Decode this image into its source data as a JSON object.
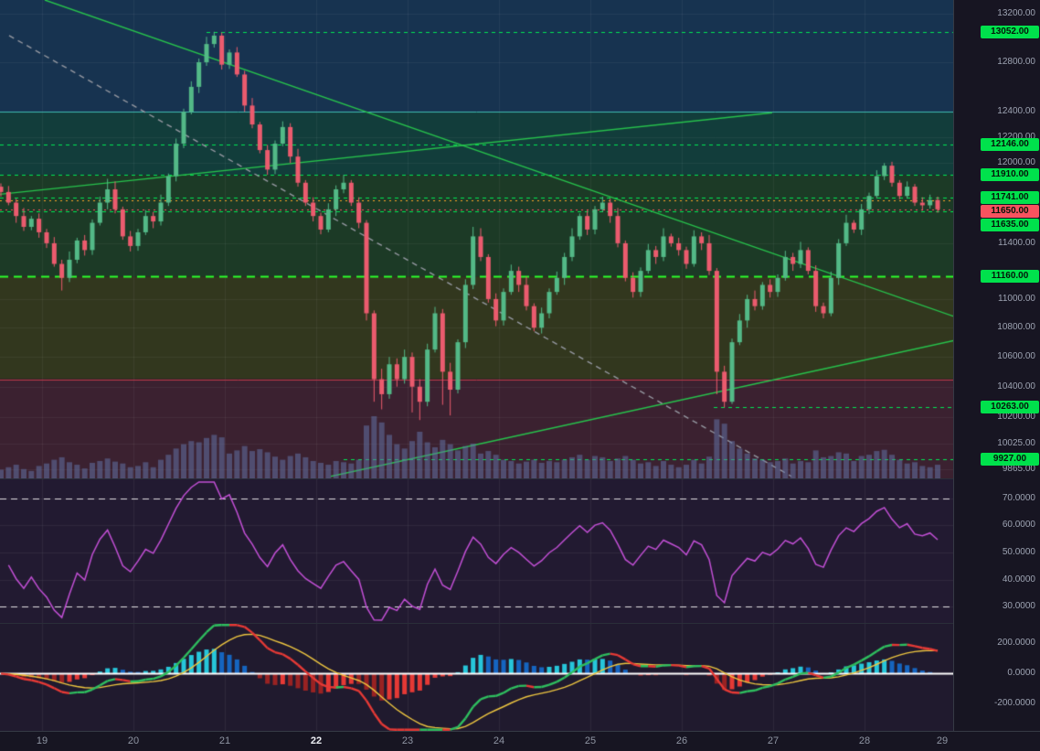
{
  "colors": {
    "bg": "#1A1626",
    "axis_text": "#9DA3B2",
    "axis_text_bold": "#EDEFF4",
    "grid": "rgba(255,255,255,0.055)",
    "up": "#53B987",
    "down": "#EB5B6E",
    "volume": "rgba(99,114,165,0.55)",
    "trend_green": "#27C24C",
    "gray_dash": "#9598A1",
    "level_green": "#00E653",
    "level_green_bright": "#2BFF2B",
    "teal": "#3FB8AF",
    "red_line": "#C0394B",
    "orange": "#FFA726",
    "last_price": "#F7525F",
    "badge_green": "#00E14C",
    "badge_red": "#F7525F",
    "rsi_line": "#C14ED4",
    "rsi_band": "rgba(255,255,255,0.85)",
    "macd_up": "#2EBD5E",
    "macd_down": "#E53935",
    "signal_line": "#EDC53F",
    "hist_pos": "#26C6DA",
    "hist_pos_dim": "#1565C0",
    "hist_neg": "#E53935",
    "hist_neg_dim": "#992222",
    "zero_line": "#FFFFFF"
  },
  "chart_data": [
    {
      "type": "candlestick",
      "x_unit": "day of month",
      "x_range": [
        18.54,
        28.97
      ],
      "y_scale": "log",
      "y_range_log": [
        9807,
        13320
      ],
      "start_day": 18.55,
      "candles_per_day": 12,
      "volume_max": 100,
      "y_ticks": [
        {
          "v": 13200,
          "label": "13200.00"
        },
        {
          "v": 12800,
          "label": "12800.00"
        },
        {
          "v": 12400,
          "label": "12400.00"
        },
        {
          "v": 12200,
          "label": "12200.00"
        },
        {
          "v": 12000,
          "label": "12000.00"
        },
        {
          "v": 11400,
          "label": "11400.00"
        },
        {
          "v": 11000,
          "label": "11000.00"
        },
        {
          "v": 10800,
          "label": "10800.00"
        },
        {
          "v": 10600,
          "label": "10600.00"
        },
        {
          "v": 10400,
          "label": "10400.00"
        },
        {
          "v": 10200,
          "label": "10200.00"
        },
        {
          "v": 10025,
          "label": "10025.00"
        },
        {
          "v": 9865,
          "label": "9865.00"
        }
      ],
      "x_ticks": [
        {
          "v": 19,
          "label": "19"
        },
        {
          "v": 20,
          "label": "20"
        },
        {
          "v": 21,
          "label": "21"
        },
        {
          "v": 22,
          "label": "22",
          "bold": true
        },
        {
          "v": 23,
          "label": "23"
        },
        {
          "v": 24,
          "label": "24"
        },
        {
          "v": 25,
          "label": "25"
        },
        {
          "v": 26,
          "label": "26"
        },
        {
          "v": 27,
          "label": "27"
        },
        {
          "v": 28,
          "label": "28"
        },
        {
          "v": 29,
          "label": "29"
        }
      ],
      "levels": [
        {
          "value": 13052,
          "label": "13052.00",
          "style": "dashed",
          "badge": "green",
          "from_day": 20.8
        },
        {
          "value": 12400,
          "label": null,
          "style": "solid-teal",
          "badge": false
        },
        {
          "value": 12146,
          "label": "12146.00",
          "style": "dashed",
          "badge": "green"
        },
        {
          "value": 11910,
          "label": "11910.00",
          "style": "dashed",
          "badge": "green"
        },
        {
          "value": 11741,
          "label": "11741.00",
          "style": "dashed",
          "badge": "green"
        },
        {
          "value": 11720,
          "label": null,
          "style": "dotted-orange",
          "badge": false
        },
        {
          "value": 11650,
          "label": "11650.00",
          "style": "dotted-red",
          "badge": "red",
          "last_price": true
        },
        {
          "value": 11635,
          "label": "11635.00",
          "style": "dashed",
          "badge": "green"
        },
        {
          "value": 11160,
          "label": "11160.00",
          "style": "dashed-thick",
          "badge": "green"
        },
        {
          "value": 10450,
          "label": null,
          "style": "solid-red",
          "badge": false
        },
        {
          "value": 10263,
          "label": "10263.00",
          "style": "dashed",
          "badge": "green",
          "from_day": 26.35
        },
        {
          "value": 9927,
          "label": "9927.00",
          "style": "dashed",
          "badge": "green",
          "from_day": 22.3
        }
      ],
      "trendlines": [
        {
          "x1": 19.03,
          "y1": 13320,
          "x2": 28.97,
          "y2": 10880,
          "color": "green",
          "style": "solid"
        },
        {
          "x1": 22.16,
          "y1": 9820,
          "x2": 28.97,
          "y2": 10710,
          "color": "green",
          "style": "solid"
        },
        {
          "x1": 18.54,
          "y1": 11763,
          "x2": 26.99,
          "y2": 12393,
          "color": "green",
          "style": "solid"
        },
        {
          "x1": 18.64,
          "y1": 13020,
          "x2": 27.2,
          "y2": 9820,
          "color": "gray",
          "style": "dashed"
        }
      ],
      "zones": [
        {
          "from": 12400,
          "to": 13320,
          "color": "#173350"
        },
        {
          "from": 11910,
          "to": 12400,
          "color": "#123D3B"
        },
        {
          "from": 11160,
          "to": 11910,
          "color": "#1C3A26"
        },
        {
          "from": 10450,
          "to": 11160,
          "color": "#32371E"
        },
        {
          "from": 9807,
          "to": 10450,
          "color": "#3B2130"
        }
      ],
      "candles": [
        [
          11820,
          11845,
          11745,
          11780,
          14
        ],
        [
          11780,
          11825,
          11680,
          11700,
          18
        ],
        [
          11700,
          11730,
          11550,
          11600,
          22
        ],
        [
          11600,
          11660,
          11490,
          11520,
          15
        ],
        [
          11520,
          11600,
          11495,
          11580,
          12
        ],
        [
          11580,
          11620,
          11440,
          11480,
          20
        ],
        [
          11480,
          11505,
          11365,
          11400,
          24
        ],
        [
          11400,
          11445,
          11230,
          11250,
          30
        ],
        [
          11250,
          11280,
          11060,
          11150,
          34
        ],
        [
          11150,
          11340,
          11120,
          11280,
          26
        ],
        [
          11280,
          11440,
          11255,
          11420,
          22
        ],
        [
          11420,
          11460,
          11310,
          11350,
          16
        ],
        [
          11350,
          11575,
          11315,
          11550,
          25
        ],
        [
          11550,
          11745,
          11530,
          11700,
          28
        ],
        [
          11700,
          11880,
          11650,
          11800,
          32
        ],
        [
          11800,
          11860,
          11620,
          11650,
          27
        ],
        [
          11650,
          11670,
          11425,
          11450,
          24
        ],
        [
          11450,
          11490,
          11340,
          11380,
          18
        ],
        [
          11380,
          11505,
          11345,
          11480,
          20
        ],
        [
          11480,
          11645,
          11460,
          11600,
          26
        ],
        [
          11600,
          11630,
          11510,
          11560,
          18
        ],
        [
          11560,
          11760,
          11530,
          11700,
          30
        ],
        [
          11700,
          11920,
          11675,
          11900,
          38
        ],
        [
          11900,
          12190,
          11860,
          12150,
          48
        ],
        [
          12150,
          12425,
          12115,
          12400,
          55
        ],
        [
          12400,
          12645,
          12380,
          12600,
          60
        ],
        [
          12600,
          12830,
          12550,
          12800,
          58
        ],
        [
          12800,
          13010,
          12770,
          12950,
          65
        ],
        [
          12950,
          13052,
          12920,
          13020,
          70
        ],
        [
          13020,
          13045,
          12740,
          12780,
          66
        ],
        [
          12780,
          12905,
          12745,
          12880,
          40
        ],
        [
          12880,
          12925,
          12680,
          12700,
          45
        ],
        [
          12700,
          12730,
          12400,
          12450,
          52
        ],
        [
          12450,
          12510,
          12270,
          12300,
          44
        ],
        [
          12300,
          12320,
          12075,
          12100,
          47
        ],
        [
          12100,
          12140,
          11910,
          11950,
          42
        ],
        [
          11950,
          12175,
          11915,
          12150,
          35
        ],
        [
          12150,
          12325,
          12130,
          12280,
          30
        ],
        [
          12280,
          12310,
          12000,
          12050,
          36
        ],
        [
          12050,
          12110,
          11820,
          11850,
          40
        ],
        [
          11850,
          11870,
          11675,
          11700,
          34
        ],
        [
          11700,
          11740,
          11560,
          11600,
          28
        ],
        [
          11600,
          11625,
          11465,
          11500,
          25
        ],
        [
          11500,
          11695,
          11480,
          11650,
          22
        ],
        [
          11650,
          11830,
          11600,
          11800,
          28
        ],
        [
          11800,
          11910,
          11770,
          11850,
          26
        ],
        [
          11850,
          11870,
          11675,
          11700,
          24
        ],
        [
          11700,
          11740,
          11510,
          11550,
          30
        ],
        [
          11550,
          11570,
          10850,
          10900,
          85
        ],
        [
          10900,
          10920,
          10300,
          10450,
          100
        ],
        [
          10450,
          10520,
          10250,
          10350,
          90
        ],
        [
          10350,
          10600,
          10320,
          10550,
          70
        ],
        [
          10550,
          10590,
          10400,
          10450,
          55
        ],
        [
          10450,
          10650,
          10420,
          10600,
          48
        ],
        [
          10600,
          10630,
          10230,
          10400,
          60
        ],
        [
          10400,
          10450,
          10180,
          10300,
          75
        ],
        [
          10300,
          10690,
          10270,
          10650,
          58
        ],
        [
          10650,
          10945,
          10630,
          10900,
          50
        ],
        [
          10900,
          10930,
          10280,
          10500,
          62
        ],
        [
          10500,
          10560,
          10210,
          10380,
          55
        ],
        [
          10380,
          10720,
          10355,
          10700,
          45
        ],
        [
          10700,
          11140,
          10660,
          11100,
          52
        ],
        [
          11100,
          11520,
          11070,
          11450,
          56
        ],
        [
          11450,
          11510,
          11270,
          11300,
          40
        ],
        [
          11300,
          11320,
          10975,
          11000,
          44
        ],
        [
          11000,
          11040,
          10810,
          10850,
          38
        ],
        [
          10850,
          11075,
          10815,
          11050,
          30
        ],
        [
          11050,
          11245,
          11030,
          11200,
          28
        ],
        [
          11200,
          11230,
          11050,
          11100,
          24
        ],
        [
          11100,
          11160,
          10920,
          10950,
          27
        ],
        [
          10950,
          10970,
          10775,
          10800,
          30
        ],
        [
          10800,
          10940,
          10760,
          10900,
          25
        ],
        [
          10900,
          11075,
          10865,
          11050,
          28
        ],
        [
          11050,
          11195,
          11030,
          11150,
          26
        ],
        [
          11150,
          11330,
          11100,
          11300,
          30
        ],
        [
          11300,
          11510,
          11270,
          11450,
          34
        ],
        [
          11450,
          11620,
          11425,
          11600,
          38
        ],
        [
          11600,
          11640,
          11460,
          11500,
          30
        ],
        [
          11500,
          11675,
          11465,
          11650,
          36
        ],
        [
          11650,
          11745,
          11630,
          11700,
          34
        ],
        [
          11700,
          11730,
          11550,
          11600,
          28
        ],
        [
          11600,
          11660,
          11370,
          11400,
          32
        ],
        [
          11400,
          11420,
          11125,
          11150,
          36
        ],
        [
          11150,
          11190,
          11010,
          11050,
          30
        ],
        [
          11050,
          11225,
          11015,
          11200,
          24
        ],
        [
          11200,
          11395,
          11180,
          11350,
          26
        ],
        [
          11350,
          11380,
          11250,
          11300,
          20
        ],
        [
          11300,
          11510,
          11270,
          11450,
          28
        ],
        [
          11450,
          11470,
          11375,
          11400,
          22
        ],
        [
          11400,
          11440,
          11310,
          11350,
          18
        ],
        [
          11350,
          11375,
          11215,
          11250,
          22
        ],
        [
          11250,
          11495,
          11230,
          11450,
          30
        ],
        [
          11450,
          11480,
          11350,
          11400,
          24
        ],
        [
          11400,
          11460,
          11170,
          11200,
          35
        ],
        [
          11200,
          11220,
          10350,
          10500,
          95
        ],
        [
          10500,
          10540,
          10263,
          10300,
          88
        ],
        [
          10300,
          10725,
          10285,
          10700,
          60
        ],
        [
          10700,
          10895,
          10680,
          10850,
          48
        ],
        [
          10850,
          11030,
          10800,
          11000,
          40
        ],
        [
          11000,
          11060,
          10920,
          10950,
          32
        ],
        [
          10950,
          11120,
          10925,
          11100,
          30
        ],
        [
          11100,
          11140,
          11010,
          11050,
          26
        ],
        [
          11050,
          11175,
          11015,
          11150,
          28
        ],
        [
          11150,
          11345,
          11130,
          11300,
          32
        ],
        [
          11300,
          11330,
          11200,
          11250,
          24
        ],
        [
          11250,
          11410,
          11220,
          11350,
          28
        ],
        [
          11350,
          11370,
          11175,
          11200,
          26
        ],
        [
          11200,
          11240,
          10910,
          10950,
          45
        ],
        [
          10950,
          10975,
          10865,
          10900,
          34
        ],
        [
          10900,
          11195,
          10880,
          11150,
          36
        ],
        [
          11150,
          11430,
          11100,
          11400,
          42
        ],
        [
          11400,
          11610,
          11380,
          11550,
          40
        ],
        [
          11550,
          11570,
          11475,
          11500,
          28
        ],
        [
          11500,
          11690,
          11460,
          11650,
          36
        ],
        [
          11650,
          11775,
          11615,
          11750,
          38
        ],
        [
          11750,
          11945,
          11730,
          11900,
          44
        ],
        [
          11900,
          12000,
          11870,
          11980,
          46
        ],
        [
          11980,
          12010,
          11820,
          11850,
          38
        ],
        [
          11850,
          11870,
          11725,
          11750,
          30
        ],
        [
          11750,
          11860,
          11730,
          11820,
          24
        ],
        [
          11820,
          11840,
          11675,
          11700,
          26
        ],
        [
          11700,
          11740,
          11640,
          11680,
          20
        ],
        [
          11680,
          11760,
          11655,
          11720,
          18
        ],
        [
          11720,
          11745,
          11625,
          11650,
          22
        ]
      ]
    },
    {
      "type": "line",
      "name": "rsi-oscillator",
      "period": 14,
      "source": "closes",
      "y_range": [
        24,
        77
      ],
      "bands": [
        70,
        30
      ],
      "y_ticks": [
        {
          "v": 70,
          "label": "70.0000"
        },
        {
          "v": 60,
          "label": "60.0000"
        },
        {
          "v": 50,
          "label": "50.0000"
        },
        {
          "v": 40,
          "label": "40.0000"
        },
        {
          "v": 30,
          "label": "30.0000"
        }
      ]
    },
    {
      "type": "macd",
      "name": "macd-histogram",
      "fast": 12,
      "slow": 26,
      "signal_period": 9,
      "source": "closes",
      "y_range": [
        -380,
        330
      ],
      "y_ticks": [
        {
          "v": 200,
          "label": "200.0000"
        },
        {
          "v": 0,
          "label": "0.0000"
        },
        {
          "v": -200,
          "label": "-200.0000"
        }
      ]
    }
  ]
}
